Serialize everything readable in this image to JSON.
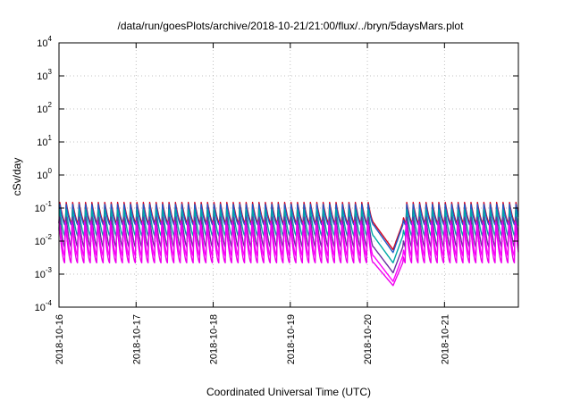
{
  "chart_data": {
    "type": "line",
    "title": "/data/run/goesPlots/archive/2018-10-21/21:00/flux/../bryn/5daysMars.plot",
    "xlabel": "Coordinated Universal Time (UTC)",
    "ylabel": "cSv/day",
    "yscale": "log",
    "ylim": [
      0.0001,
      10000
    ],
    "xlim": [
      "2018-10-16",
      "2018-10-21 23:00"
    ],
    "grid": true,
    "legend": "none",
    "x_ticks": [
      "2018-10-16",
      "2018-10-17",
      "2018-10-18",
      "2018-10-19",
      "2018-10-20",
      "2018-10-21"
    ],
    "y_ticks": [
      {
        "base": "10",
        "exp": "-4"
      },
      {
        "base": "10",
        "exp": "-3"
      },
      {
        "base": "10",
        "exp": "-2"
      },
      {
        "base": "10",
        "exp": "-1"
      },
      {
        "base": "10",
        "exp": "0"
      },
      {
        "base": "10",
        "exp": "1"
      },
      {
        "base": "10",
        "exp": "2"
      },
      {
        "base": "10",
        "exp": "3"
      },
      {
        "base": "10",
        "exp": "4"
      }
    ],
    "period_hours": 2,
    "series": [
      {
        "color": "#d6001c",
        "peak": 0.15,
        "trough": 0.035,
        "dip_min": 0.0055
      },
      {
        "color": "#1e5cc8",
        "peak": 0.14,
        "trough": 0.03,
        "dip_min": 0.0045
      },
      {
        "color": "#00a6a6",
        "peak": 0.11,
        "trough": 0.014,
        "dip_min": 0.0022
      },
      {
        "color": "#6a2fa0",
        "peak": 0.075,
        "trough": 0.0065,
        "dip_min": 0.0011
      },
      {
        "color": "#ff00ff",
        "peak": 0.05,
        "trough": 0.0035,
        "dip_min": 0.0006
      },
      {
        "color": "#ee00ee",
        "peak": 0.04,
        "trough": 0.0022,
        "dip_min": 0.00045
      }
    ],
    "dip": {
      "start_hour": 98,
      "end_hour": 107,
      "center_hour": 104
    }
  }
}
